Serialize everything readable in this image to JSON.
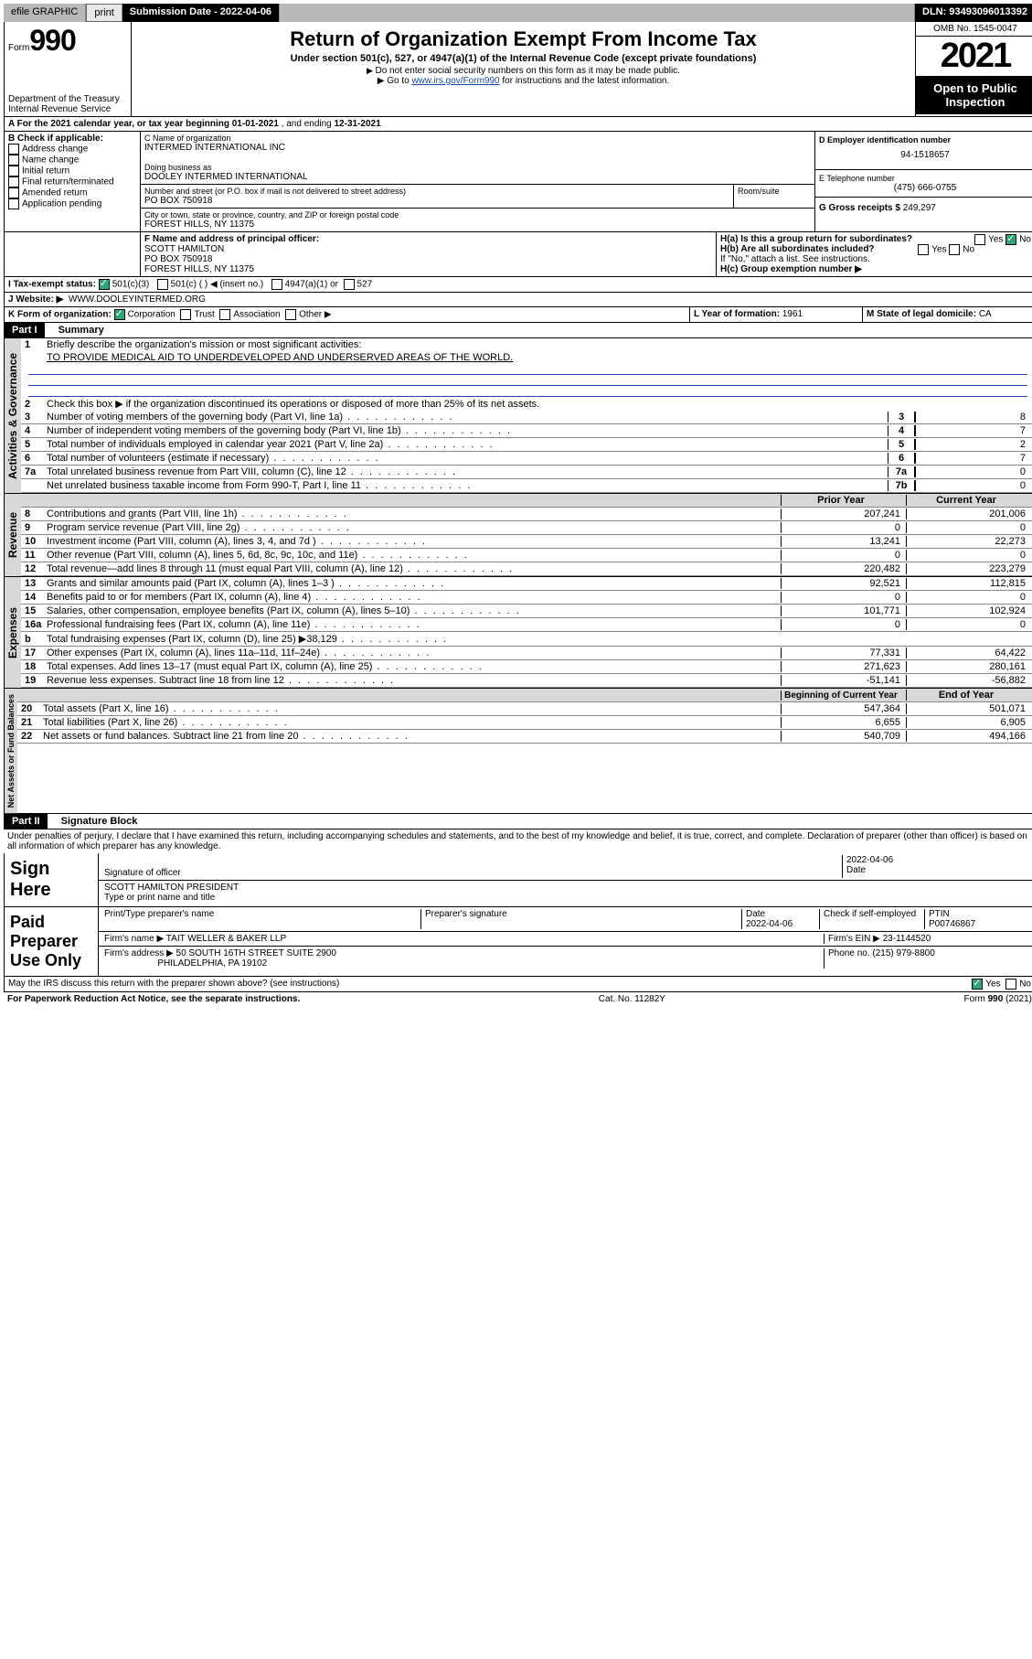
{
  "topbar": {
    "efile_label": "efile GRAPHIC",
    "print_btn": "print",
    "submission_label": "Submission Date - 2022-04-06",
    "dln_label": "DLN: 93493096013392"
  },
  "header": {
    "form_word": "Form",
    "form_num": "990",
    "dept": "Department of the Treasury",
    "irs": "Internal Revenue Service",
    "title": "Return of Organization Exempt From Income Tax",
    "subtitle": "Under section 501(c), 527, or 4947(a)(1) of the Internal Revenue Code (except private foundations)",
    "note1": "Do not enter social security numbers on this form as it may be made public.",
    "note2_pre": "Go to ",
    "note2_link": "www.irs.gov/Form990",
    "note2_post": " for instructions and the latest information.",
    "omb": "OMB No. 1545-0047",
    "year": "2021",
    "open_public": "Open to Public Inspection"
  },
  "period": {
    "label_a": "A For the 2021 calendar year, or tax year beginning ",
    "begin": "01-01-2021",
    "mid": ", and ending ",
    "end": "12-31-2021"
  },
  "boxB": {
    "label": "B Check if applicable:",
    "opts": [
      "Address change",
      "Name change",
      "Initial return",
      "Final return/terminated",
      "Amended return",
      "Application pending"
    ]
  },
  "boxC": {
    "label": "C Name of organization",
    "name": "INTERMED INTERNATIONAL INC",
    "dba_label": "Doing business as",
    "dba": "DOOLEY INTERMED INTERNATIONAL",
    "street_label": "Number and street (or P.O. box if mail is not delivered to street address)",
    "room_label": "Room/suite",
    "street": "PO BOX 750918",
    "city_label": "City or town, state or province, country, and ZIP or foreign postal code",
    "city": "FOREST HILLS, NY  11375"
  },
  "boxD": {
    "label": "D Employer identification number",
    "val": "94-1518657"
  },
  "boxE": {
    "label": "E Telephone number",
    "val": "(475) 666-0755"
  },
  "boxG": {
    "label": "G Gross receipts $",
    "val": "249,297"
  },
  "boxF": {
    "label": "F Name and address of principal officer:",
    "name": "SCOTT HAMILTON",
    "street": "PO BOX 750918",
    "city": "FOREST HILLS, NY  11375"
  },
  "boxH": {
    "a_label": "H(a)  Is this a group return for subordinates?",
    "b_label": "H(b)  Are all subordinates included?",
    "b_note": "If \"No,\" attach a list. See instructions.",
    "c_label": "H(c)  Group exemption number ▶",
    "yes": "Yes",
    "no": "No"
  },
  "boxI": {
    "label": "I  Tax-exempt status:",
    "o1": "501(c)(3)",
    "o2": "501(c) (  ) ◀ (insert no.)",
    "o3": "4947(a)(1) or",
    "o4": "527"
  },
  "boxJ": {
    "label": "J  Website: ▶",
    "val": "WWW.DOOLEYINTERMED.ORG"
  },
  "boxK": {
    "label": "K Form of organization:",
    "o1": "Corporation",
    "o2": "Trust",
    "o3": "Association",
    "o4": "Other ▶"
  },
  "boxL": {
    "label": "L Year of formation:",
    "val": "1961"
  },
  "boxM": {
    "label": "M State of legal domicile:",
    "val": "CA"
  },
  "part1": {
    "hdr": "Part I",
    "title": "Summary",
    "l1": "Briefly describe the organization's mission or most significant activities:",
    "mission": "TO PROVIDE MEDICAL AID TO UNDERDEVELOPED AND UNDERSERVED AREAS OF THE WORLD.",
    "l2": "Check this box ▶        if the organization discontinued its operations or disposed of more than 25% of its net assets.",
    "rows_gov": [
      {
        "n": "3",
        "t": "Number of voting members of the governing body (Part VI, line 1a)",
        "box": "3",
        "v": "8"
      },
      {
        "n": "4",
        "t": "Number of independent voting members of the governing body (Part VI, line 1b)",
        "box": "4",
        "v": "7"
      },
      {
        "n": "5",
        "t": "Total number of individuals employed in calendar year 2021 (Part V, line 2a)",
        "box": "5",
        "v": "2"
      },
      {
        "n": "6",
        "t": "Total number of volunteers (estimate if necessary)",
        "box": "6",
        "v": "7"
      },
      {
        "n": "7a",
        "t": "Total unrelated business revenue from Part VIII, column (C), line 12",
        "box": "7a",
        "v": "0"
      },
      {
        "n": "",
        "t": "Net unrelated business taxable income from Form 990-T, Part I, line 11",
        "box": "7b",
        "v": "0"
      }
    ],
    "colhdr_prior": "Prior Year",
    "colhdr_curr": "Current Year",
    "rows_rev": [
      {
        "n": "8",
        "t": "Contributions and grants (Part VIII, line 1h)",
        "p": "207,241",
        "c": "201,006"
      },
      {
        "n": "9",
        "t": "Program service revenue (Part VIII, line 2g)",
        "p": "0",
        "c": "0"
      },
      {
        "n": "10",
        "t": "Investment income (Part VIII, column (A), lines 3, 4, and 7d )",
        "p": "13,241",
        "c": "22,273"
      },
      {
        "n": "11",
        "t": "Other revenue (Part VIII, column (A), lines 5, 6d, 8c, 9c, 10c, and 11e)",
        "p": "0",
        "c": "0"
      },
      {
        "n": "12",
        "t": "Total revenue—add lines 8 through 11 (must equal Part VIII, column (A), line 12)",
        "p": "220,482",
        "c": "223,279"
      }
    ],
    "rows_exp": [
      {
        "n": "13",
        "t": "Grants and similar amounts paid (Part IX, column (A), lines 1–3 )",
        "p": "92,521",
        "c": "112,815"
      },
      {
        "n": "14",
        "t": "Benefits paid to or for members (Part IX, column (A), line 4)",
        "p": "0",
        "c": "0"
      },
      {
        "n": "15",
        "t": "Salaries, other compensation, employee benefits (Part IX, column (A), lines 5–10)",
        "p": "101,771",
        "c": "102,924"
      },
      {
        "n": "16a",
        "t": "Professional fundraising fees (Part IX, column (A), line 11e)",
        "p": "0",
        "c": "0"
      },
      {
        "n": "b",
        "t": "Total fundraising expenses (Part IX, column (D), line 25) ▶38,129",
        "p": "",
        "c": "",
        "shade": true
      },
      {
        "n": "17",
        "t": "Other expenses (Part IX, column (A), lines 11a–11d, 11f–24e)",
        "p": "77,331",
        "c": "64,422"
      },
      {
        "n": "18",
        "t": "Total expenses. Add lines 13–17 (must equal Part IX, column (A), line 25)",
        "p": "271,623",
        "c": "280,161"
      },
      {
        "n": "19",
        "t": "Revenue less expenses. Subtract line 18 from line 12",
        "p": "-51,141",
        "c": "-56,882"
      }
    ],
    "colhdr_beg": "Beginning of Current Year",
    "colhdr_end": "End of Year",
    "rows_na": [
      {
        "n": "20",
        "t": "Total assets (Part X, line 16)",
        "p": "547,364",
        "c": "501,071"
      },
      {
        "n": "21",
        "t": "Total liabilities (Part X, line 26)",
        "p": "6,655",
        "c": "6,905"
      },
      {
        "n": "22",
        "t": "Net assets or fund balances. Subtract line 21 from line 20",
        "p": "540,709",
        "c": "494,166"
      }
    ],
    "side_gov": "Activities & Governance",
    "side_rev": "Revenue",
    "side_exp": "Expenses",
    "side_na": "Net Assets or Fund Balances"
  },
  "part2": {
    "hdr": "Part II",
    "title": "Signature Block",
    "decl": "Under penalties of perjury, I declare that I have examined this return, including accompanying schedules and statements, and to the best of my knowledge and belief, it is true, correct, and complete. Declaration of preparer (other than officer) is based on all information of which preparer has any knowledge.",
    "sign_here": "Sign Here",
    "sig_officer": "Signature of officer",
    "sig_date": "Date",
    "sig_date_val": "2022-04-06",
    "officer_name": "SCOTT HAMILTON  PRESIDENT",
    "officer_label": "Type or print name and title",
    "paid": "Paid Preparer Use Only",
    "prep_name_label": "Print/Type preparer's name",
    "prep_sig_label": "Preparer's signature",
    "prep_date_label": "Date",
    "prep_date": "2022-04-06",
    "prep_check": "Check        if self-employed",
    "ptin_label": "PTIN",
    "ptin": "P00746867",
    "firm_name_label": "Firm's name    ▶",
    "firm_name": "TAIT WELLER & BAKER LLP",
    "firm_ein_label": "Firm's EIN ▶",
    "firm_ein": "23-1144520",
    "firm_addr_label": "Firm's address ▶",
    "firm_addr1": "50 SOUTH 16TH STREET SUITE 2900",
    "firm_addr2": "PHILADELPHIA, PA  19102",
    "phone_label": "Phone no.",
    "phone": "(215) 979-8800",
    "discuss": "May the IRS discuss this return with the preparer shown above? (see instructions)"
  },
  "footer": {
    "left": "For Paperwork Reduction Act Notice, see the separate instructions.",
    "mid": "Cat. No. 11282Y",
    "right": "Form 990 (2021)"
  }
}
